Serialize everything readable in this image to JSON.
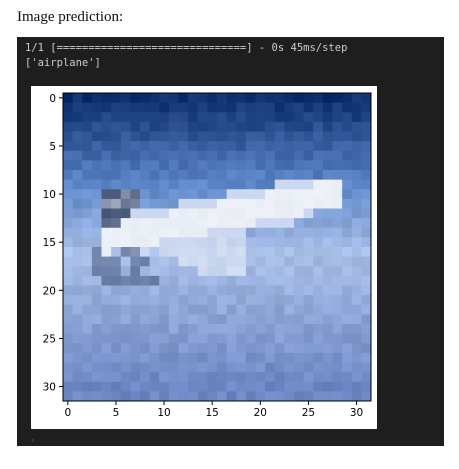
{
  "page": {
    "heading": "Image prediction:"
  },
  "console": {
    "progress_line": "1/1 [==============================] - 0s 45ms/step",
    "prediction_line": "['airplane']"
  },
  "chart_data": {
    "type": "heatmap",
    "title": "",
    "xlabel": "",
    "ylabel": "",
    "xlim": [
      0,
      31
    ],
    "ylim": [
      31,
      0
    ],
    "x_ticks": [
      0,
      5,
      10,
      15,
      20,
      25,
      30
    ],
    "y_ticks": [
      0,
      5,
      10,
      15,
      20,
      25,
      30
    ],
    "image_content": "airplane",
    "colors": {
      "sky_top": "#0d2f6f",
      "sky_mid": "#5d86c8",
      "haze": "#a9bfe7",
      "ground": "#6d87c4",
      "plane_body": "#e8edf5",
      "plane_shadow": "#2d3f63"
    }
  }
}
